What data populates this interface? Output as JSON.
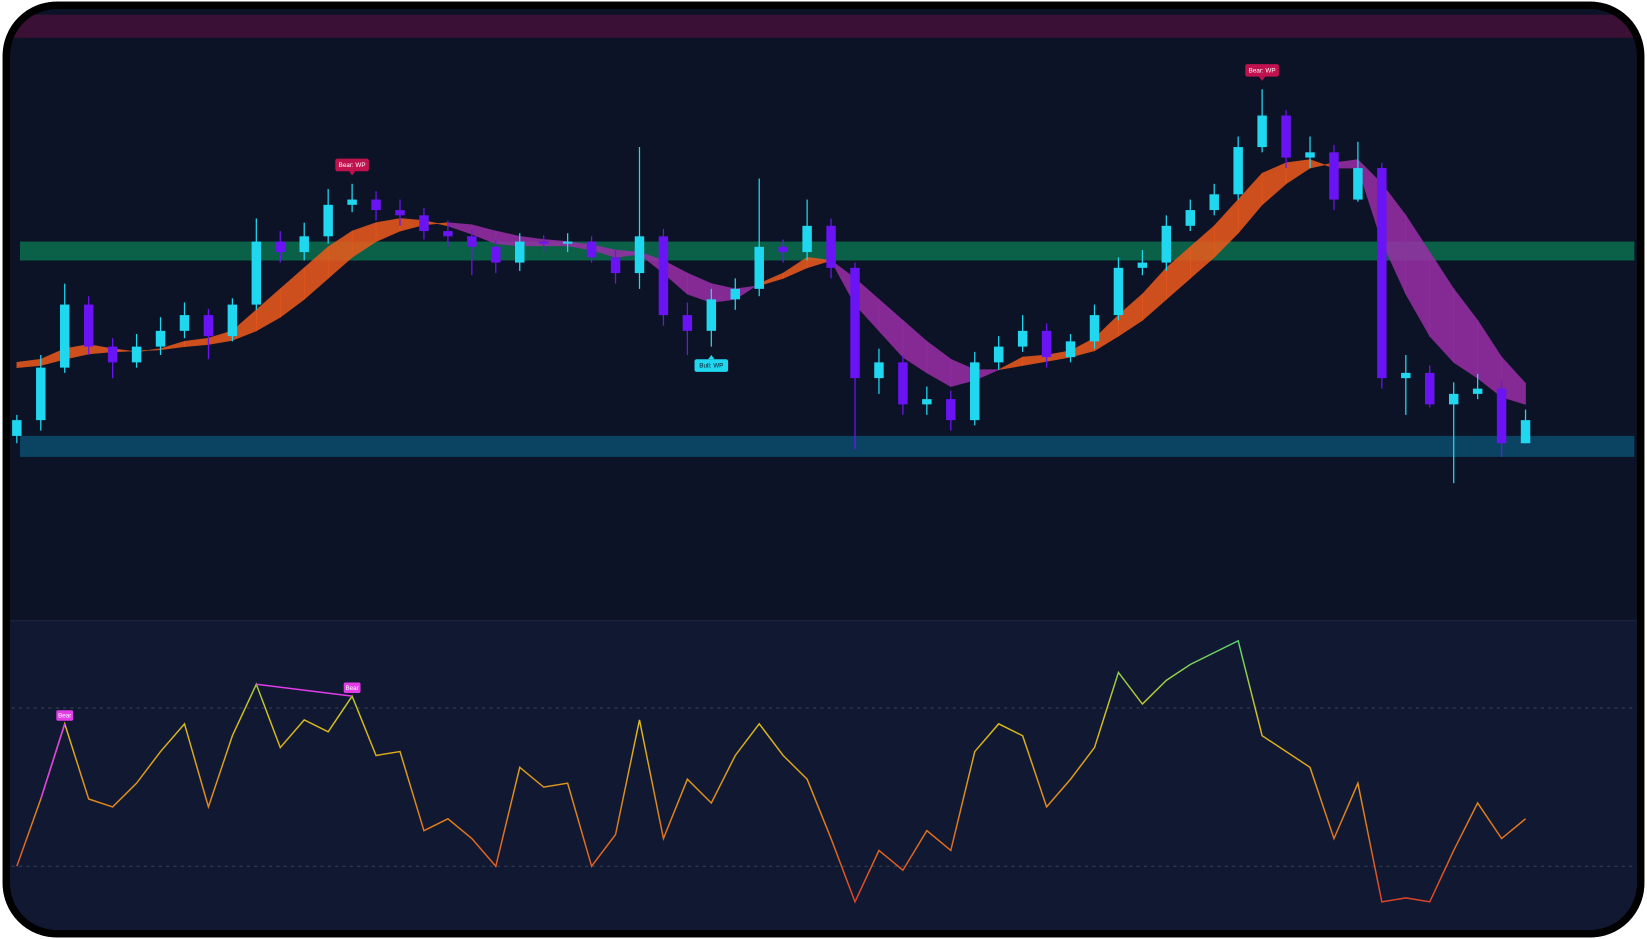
{
  "chart_data": [
    {
      "type": "candlestick",
      "open": [
        185,
        200,
        250,
        310,
        270,
        255,
        270,
        285,
        300,
        280,
        310,
        370,
        360,
        375,
        405,
        410,
        400,
        395,
        380,
        375,
        365,
        350,
        370,
        368,
        370,
        355,
        340,
        375,
        300,
        285,
        315,
        325,
        365,
        360,
        385,
        345,
        240,
        255,
        215,
        220,
        200,
        255,
        270,
        285,
        260,
        275,
        300,
        345,
        350,
        385,
        400,
        415,
        460,
        490,
        450,
        455,
        410,
        440,
        240,
        245,
        215,
        225,
        230,
        178
      ],
      "high": [
        205,
        262,
        330,
        318,
        278,
        282,
        298,
        312,
        306,
        316,
        392,
        380,
        388,
        420,
        425,
        418,
        410,
        402,
        390,
        382,
        372,
        378,
        376,
        378,
        375,
        362,
        460,
        382,
        312,
        325,
        335,
        430,
        372,
        410,
        392,
        350,
        268,
        262,
        232,
        228,
        265,
        280,
        300,
        292,
        282,
        310,
        355,
        362,
        395,
        410,
        425,
        470,
        515,
        495,
        470,
        462,
        465,
        445,
        262,
        252,
        236,
        244,
        238,
        210
      ],
      "low": [
        178,
        190,
        245,
        262,
        240,
        250,
        262,
        278,
        258,
        275,
        305,
        350,
        352,
        368,
        398,
        390,
        385,
        372,
        365,
        338,
        340,
        342,
        360,
        360,
        350,
        330,
        325,
        290,
        262,
        270,
        305,
        318,
        350,
        352,
        335,
        172,
        225,
        205,
        205,
        190,
        195,
        248,
        265,
        250,
        255,
        268,
        295,
        338,
        342,
        380,
        395,
        410,
        455,
        440,
        440,
        400,
        408,
        230,
        205,
        212,
        140,
        220,
        165,
        178
      ],
      "close": [
        200,
        250,
        310,
        270,
        255,
        270,
        285,
        300,
        280,
        310,
        370,
        360,
        375,
        405,
        410,
        400,
        395,
        380,
        375,
        365,
        350,
        370,
        368,
        370,
        355,
        340,
        375,
        300,
        285,
        315,
        325,
        365,
        360,
        385,
        345,
        240,
        255,
        215,
        220,
        200,
        255,
        270,
        285,
        260,
        275,
        300,
        345,
        350,
        385,
        400,
        415,
        460,
        490,
        450,
        455,
        410,
        440,
        240,
        245,
        215,
        225,
        230,
        178,
        200
      ],
      "up_color": "#1fd8f0",
      "down_color": "#6a14f5",
      "ma_fast": [
        255,
        258,
        268,
        272,
        268,
        265,
        268,
        275,
        278,
        285,
        305,
        325,
        345,
        365,
        380,
        388,
        392,
        390,
        385,
        377,
        368,
        366,
        366,
        366,
        362,
        355,
        358,
        340,
        320,
        312,
        315,
        330,
        340,
        355,
        352,
        310,
        285,
        260,
        245,
        232,
        238,
        248,
        260,
        262,
        266,
        278,
        300,
        320,
        345,
        365,
        385,
        410,
        435,
        445,
        448,
        440,
        440,
        370,
        320,
        280,
        255,
        240,
        222,
        215
      ],
      "ma_slow": [
        250,
        252,
        258,
        263,
        265,
        266,
        267,
        270,
        272,
        276,
        285,
        298,
        315,
        335,
        355,
        370,
        380,
        386,
        388,
        386,
        380,
        375,
        372,
        370,
        367,
        362,
        360,
        352,
        340,
        330,
        325,
        328,
        335,
        345,
        352,
        335,
        315,
        295,
        275,
        258,
        248,
        248,
        252,
        256,
        260,
        266,
        280,
        295,
        315,
        335,
        355,
        378,
        405,
        425,
        440,
        445,
        448,
        425,
        395,
        360,
        325,
        295,
        260,
        235
      ],
      "ribbon_colors": {
        "bull": "#ee5a1c",
        "bear": "#9a2fa8"
      },
      "zones": [
        {
          "low": 352,
          "high": 370,
          "color": "#0a6a4c"
        },
        {
          "low": 165,
          "high": 185,
          "color": "#0b4a6a"
        }
      ],
      "annotations": [
        {
          "text": "Bear: WP",
          "index": 14,
          "side": "above",
          "color": "#c0124f"
        },
        {
          "text": "Bull: WP",
          "index": 29,
          "side": "below",
          "color": "#1fd8f0"
        },
        {
          "text": "Bear: WP",
          "index": 52,
          "side": "above",
          "color": "#c0124f"
        }
      ],
      "ylim": [
        10,
        590
      ]
    },
    {
      "type": "line",
      "values": [
        30,
        47,
        66,
        47,
        45,
        51,
        59,
        66,
        45,
        63,
        76,
        60,
        67,
        64,
        73,
        58,
        59,
        39,
        42,
        37,
        30,
        55,
        50,
        51,
        30,
        38,
        67,
        37,
        52,
        46,
        58,
        66,
        58,
        52,
        37,
        21,
        34,
        29,
        39,
        34,
        59,
        66,
        63,
        45,
        52,
        60,
        79,
        71,
        77,
        81,
        84,
        87,
        63,
        59,
        55,
        37,
        51,
        21,
        22,
        21,
        34,
        46,
        37,
        42
      ],
      "levels": [
        30,
        70
      ],
      "divergences": [
        {
          "label": "Bear",
          "from": 1,
          "to": 2,
          "color": "#e03ce8"
        },
        {
          "label": "Bear",
          "from": 10,
          "to": 14,
          "color": "#e03ce8"
        }
      ],
      "ylim": [
        14,
        91
      ]
    }
  ]
}
